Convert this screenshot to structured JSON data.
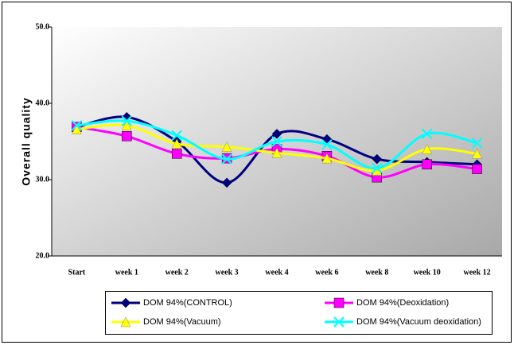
{
  "chart_data": {
    "type": "line",
    "y_label": "Overall quality",
    "categories": [
      "Start",
      "week 1",
      "week 2",
      "week 3",
      "week 4",
      "week 6",
      "week 8",
      "week 10",
      "week 12"
    ],
    "series": [
      {
        "name": "DOM 94%(CONTROL)",
        "color": "#000080",
        "marker": "diamond",
        "values": [
          36.9,
          38.2,
          35.0,
          29.6,
          36.0,
          35.3,
          32.7,
          32.3,
          32.0
        ]
      },
      {
        "name": "DOM 94%(Deoxidation)",
        "color": "#ff00ff",
        "marker": "square",
        "values": [
          36.9,
          35.7,
          33.4,
          32.8,
          34.0,
          33.1,
          30.3,
          32.0,
          31.4
        ]
      },
      {
        "name": "DOM 94%(Vacuum)",
        "color": "#ffff00",
        "marker": "triangle",
        "values": [
          36.6,
          37.1,
          34.7,
          34.3,
          33.5,
          32.8,
          31.2,
          34.0,
          33.4
        ]
      },
      {
        "name": "DOM 94%(Vacuum deoxidation)",
        "color": "#00ffff",
        "marker": "x",
        "values": [
          37.1,
          37.7,
          35.8,
          32.7,
          35.0,
          34.6,
          31.5,
          36.0,
          34.8
        ]
      }
    ],
    "ylim": [
      20,
      50
    ],
    "yticks": [
      {
        "value": 20,
        "label": "20.0"
      },
      {
        "value": 30,
        "label": "30.0"
      },
      {
        "value": 40,
        "label": "40.0"
      },
      {
        "value": 50,
        "label": "50.0"
      }
    ],
    "smooth": true
  }
}
